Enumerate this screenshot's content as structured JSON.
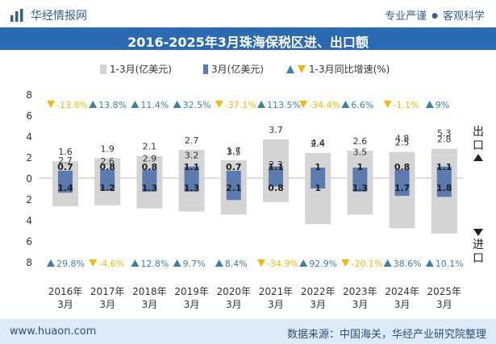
{
  "header": {
    "brand": "华经情报网",
    "tagline_left": "专业严谨",
    "tagline_right": "客观科学",
    "logo_icon": "bar-chart-logo-icon"
  },
  "footer": {
    "site": "www.huaon.com",
    "source": "数据来源：中国海关，华经产业研究院整理"
  },
  "colors": {
    "title_bar": "#2a6ab2",
    "cumulative_bar": "#d4d4d4",
    "monthly_bar": "#5b7bae",
    "up_marker": "#3a7fad",
    "down_marker": "#f5b800",
    "footer_bg": "#ddeaf7"
  },
  "chart_data": {
    "type": "bar",
    "title": "2016-2025年3月珠海保税区进、出口额",
    "categories": [
      [
        "2016年",
        "3月"
      ],
      [
        "2017年",
        "3月"
      ],
      [
        "2018年",
        "3月"
      ],
      [
        "2019年",
        "3月"
      ],
      [
        "2020年",
        "3月"
      ],
      [
        "2021年",
        "3月"
      ],
      [
        "2022年",
        "3月"
      ],
      [
        "2023年",
        "3月"
      ],
      [
        "2024年",
        "3月"
      ],
      [
        "2025年",
        "3月"
      ]
    ],
    "legend": [
      "1-3月(亿美元)",
      "3月(亿美元)",
      "1-3月同比增速(%)"
    ],
    "legend_position": "top",
    "ylim": [
      -8,
      8
    ],
    "yticks": [
      8,
      6,
      4,
      2,
      0,
      2,
      4,
      6,
      8
    ],
    "ytick_values": [
      8,
      6,
      4,
      2,
      0,
      -2,
      -4,
      -6,
      -8
    ],
    "grid": false,
    "side_labels": {
      "export": "出口",
      "import": "进口"
    },
    "export": {
      "cumulative": [
        1.6,
        1.9,
        2.1,
        2.7,
        1.7,
        3.7,
        2.4,
        2.6,
        2.5,
        2.8
      ],
      "monthly": [
        0.7,
        0.8,
        0.8,
        1.1,
        0.7,
        1.1,
        1,
        1,
        0.8,
        1.1
      ],
      "growth": [
        "-13.8%",
        "13.8%",
        "11.4%",
        "32.5%",
        "-37.1%",
        "113.5%",
        "-34.4%",
        "6.6%",
        "-1.1%",
        "9%"
      ],
      "growth_direction": [
        "down",
        "up",
        "up",
        "up",
        "down",
        "up",
        "down",
        "up",
        "down",
        "up"
      ]
    },
    "import": {
      "cumulative": [
        2.7,
        2.6,
        2.9,
        3.2,
        3.5,
        2.3,
        4.4,
        3.5,
        4.8,
        5.3
      ],
      "monthly": [
        1.4,
        1.2,
        1.3,
        1.3,
        2.1,
        0.8,
        1,
        1.3,
        1.7,
        1.8
      ],
      "growth": [
        "29.8%",
        "-4.6%",
        "12.8%",
        "9.7%",
        "8.4%",
        "-34.9%",
        "92.9%",
        "-20.1%",
        "38.6%",
        "10.1%"
      ],
      "growth_direction": [
        "up",
        "down",
        "up",
        "up",
        "up",
        "down",
        "up",
        "down",
        "up",
        "up"
      ]
    }
  }
}
